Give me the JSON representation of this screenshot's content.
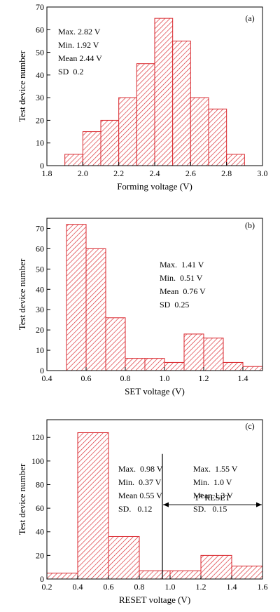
{
  "colors": {
    "bar": "#d9262c",
    "axis": "#000000",
    "background": "#ffffff"
  },
  "chart_data": [
    {
      "type": "bar",
      "panel_label": "(a)",
      "xlabel": "Forming voltage (V)",
      "ylabel": "Test device number",
      "xlim": [
        1.8,
        3.0
      ],
      "ylim": [
        0,
        70
      ],
      "xticks": [
        1.8,
        2.0,
        2.2,
        2.4,
        2.6,
        2.8,
        3.0
      ],
      "xtick_labels": [
        "1.8",
        "2.0",
        "2.2",
        "2.4",
        "2.6",
        "2.8",
        "3.0"
      ],
      "yticks": [
        0,
        10,
        20,
        30,
        40,
        50,
        60,
        70
      ],
      "ytick_labels": [
        "0",
        "10",
        "20",
        "30",
        "40",
        "50",
        "60",
        "70"
      ],
      "bins": [
        {
          "from": 1.9,
          "to": 2.0,
          "value": 5
        },
        {
          "from": 2.0,
          "to": 2.1,
          "value": 15
        },
        {
          "from": 2.1,
          "to": 2.2,
          "value": 20
        },
        {
          "from": 2.2,
          "to": 2.3,
          "value": 30
        },
        {
          "from": 2.3,
          "to": 2.4,
          "value": 45
        },
        {
          "from": 2.4,
          "to": 2.5,
          "value": 65
        },
        {
          "from": 2.5,
          "to": 2.6,
          "value": 55
        },
        {
          "from": 2.6,
          "to": 2.7,
          "value": 30
        },
        {
          "from": 2.7,
          "to": 2.8,
          "value": 25
        },
        {
          "from": 2.8,
          "to": 2.9,
          "value": 5
        }
      ],
      "stats": [
        "Max. 2.82 V",
        "Min. 1.92 V",
        "Mean 2.44 V",
        "SD  0.2"
      ]
    },
    {
      "type": "bar",
      "panel_label": "(b)",
      "xlabel": "SET voltage (V)",
      "ylabel": "Test device number",
      "xlim": [
        0.4,
        1.5
      ],
      "ylim": [
        0,
        75
      ],
      "xticks": [
        0.4,
        0.6,
        0.8,
        1.0,
        1.2,
        1.4
      ],
      "xtick_labels": [
        "0.4",
        "0.6",
        "0.8",
        "1.0",
        "1.2",
        "1.4"
      ],
      "yticks": [
        0,
        10,
        20,
        30,
        40,
        50,
        60,
        70
      ],
      "ytick_labels": [
        "0",
        "10",
        "20",
        "30",
        "40",
        "50",
        "60",
        "70"
      ],
      "bins": [
        {
          "from": 0.5,
          "to": 0.6,
          "value": 72
        },
        {
          "from": 0.6,
          "to": 0.7,
          "value": 60
        },
        {
          "from": 0.7,
          "to": 0.8,
          "value": 26
        },
        {
          "from": 0.8,
          "to": 0.9,
          "value": 6
        },
        {
          "from": 0.9,
          "to": 1.0,
          "value": 6
        },
        {
          "from": 1.0,
          "to": 1.1,
          "value": 4
        },
        {
          "from": 1.1,
          "to": 1.2,
          "value": 18
        },
        {
          "from": 1.2,
          "to": 1.3,
          "value": 16
        },
        {
          "from": 1.3,
          "to": 1.4,
          "value": 4
        },
        {
          "from": 1.4,
          "to": 1.5,
          "value": 2
        }
      ],
      "stats": [
        "Max.  1.41 V",
        "Min.  0.51 V",
        "Mean  0.76 V",
        "SD  0.25"
      ]
    },
    {
      "type": "bar",
      "panel_label": "(c)",
      "xlabel": "RESET voltage (V)",
      "ylabel": "Test device number",
      "xlim": [
        0.2,
        1.6
      ],
      "ylim": [
        0,
        135
      ],
      "xticks": [
        0.2,
        0.4,
        0.6,
        0.8,
        1.0,
        1.2,
        1.4,
        1.6
      ],
      "xtick_labels": [
        "0.2",
        "0.4",
        "0.6",
        "0.8",
        "1.0",
        "1.2",
        "1.4",
        "1.6"
      ],
      "yticks": [
        0,
        20,
        40,
        60,
        80,
        100,
        120
      ],
      "ytick_labels": [
        "0",
        "20",
        "40",
        "60",
        "80",
        "100",
        "120"
      ],
      "bins": [
        {
          "from": 0.2,
          "to": 0.4,
          "value": 5
        },
        {
          "from": 0.4,
          "to": 0.6,
          "value": 124
        },
        {
          "from": 0.6,
          "to": 0.8,
          "value": 36
        },
        {
          "from": 0.8,
          "to": 1.0,
          "value": 7
        },
        {
          "from": 1.0,
          "to": 1.2,
          "value": 7
        },
        {
          "from": 1.2,
          "to": 1.4,
          "value": 20
        },
        {
          "from": 1.4,
          "to": 1.6,
          "value": 11
        }
      ],
      "stats": [
        "Max.  0.98 V",
        "Min.  0.37 V",
        "Mean 0.55 V",
        "SD.   0.12"
      ],
      "stats2": [
        "Max.  1.55 V",
        "Min.  1.0 V",
        "Mean 1.3 V",
        "SD.   0.15"
      ],
      "divider_x": 0.95,
      "divider_top": 106,
      "arrow_y": 63,
      "arrow_label_main": "1",
      "arrow_label_sup": "st",
      "arrow_label_rest": " RESET"
    }
  ]
}
